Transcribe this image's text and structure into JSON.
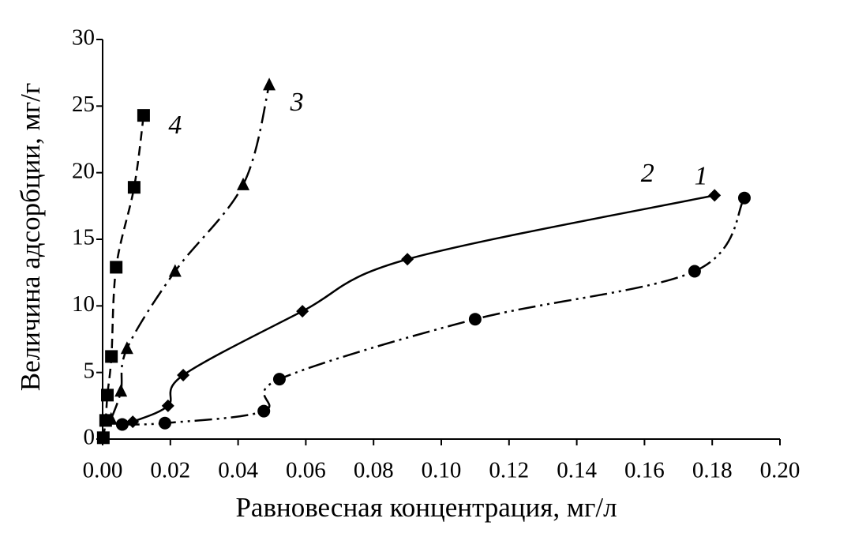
{
  "chart_data": {
    "type": "scatter-line",
    "x_label": "Равновесная концентрация, мг/л",
    "y_label": "Величина адсорбции, мг/г",
    "xlim": [
      0,
      0.2
    ],
    "ylim": [
      0,
      30
    ],
    "xticks": [
      {
        "value": 0,
        "label": "0.00"
      },
      {
        "value": 0.02,
        "label": "0.02"
      },
      {
        "value": 0.04,
        "label": "0.04"
      },
      {
        "value": 0.06,
        "label": "0.06"
      },
      {
        "value": 0.08,
        "label": "0.08"
      },
      {
        "value": 0.1,
        "label": "0.10"
      },
      {
        "value": 0.12,
        "label": "0.12"
      },
      {
        "value": 0.14,
        "label": "0.14"
      },
      {
        "value": 0.16,
        "label": "0.16"
      },
      {
        "value": 0.18,
        "label": "0.18"
      },
      {
        "value": 0.2,
        "label": "0.20"
      }
    ],
    "yticks": [
      0,
      5,
      10,
      15,
      20,
      25,
      30
    ],
    "series": [
      {
        "name": "1",
        "color": "#000000",
        "marker": "circle",
        "line_style": "dash-dot-dot",
        "x": [
          0.0058,
          0.0184,
          0.0476,
          0.0522,
          0.11,
          0.1748,
          0.1895
        ],
        "values": [
          1.1,
          1.2,
          2.1,
          4.5,
          9.0,
          12.6,
          18.1
        ]
      },
      {
        "name": "2",
        "color": "#000000",
        "marker": "diamond",
        "line_style": "solid",
        "x": [
          0.0089,
          0.0193,
          0.0238,
          0.059,
          0.09,
          0.1807
        ],
        "values": [
          1.3,
          2.5,
          4.8,
          9.6,
          13.5,
          18.3
        ]
      },
      {
        "name": "3",
        "color": "#000000",
        "marker": "triangle",
        "line_style": "dash-dot",
        "x": [
          0.0025,
          0.0054,
          0.0072,
          0.0214,
          0.0415,
          0.0492
        ],
        "values": [
          1.5,
          3.6,
          6.8,
          12.6,
          19.1,
          26.6
        ]
      },
      {
        "name": "4",
        "color": "#000000",
        "marker": "square",
        "line_style": "dashed",
        "x": [
          0.0002,
          0.0009,
          0.0014,
          0.0026,
          0.004,
          0.0093,
          0.0121
        ],
        "values": [
          0.1,
          1.4,
          3.3,
          6.2,
          12.9,
          18.9,
          24.3
        ]
      }
    ]
  }
}
